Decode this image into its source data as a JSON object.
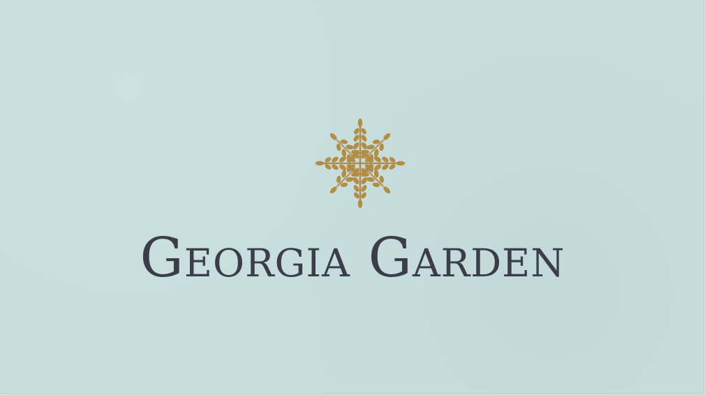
{
  "brand": {
    "name": "Georgia Garden",
    "logo_icon": "tree-of-life-icon"
  },
  "colors": {
    "background": "#c6dedd",
    "logo_gold": "#b38c45",
    "text": "#3b3d48"
  }
}
